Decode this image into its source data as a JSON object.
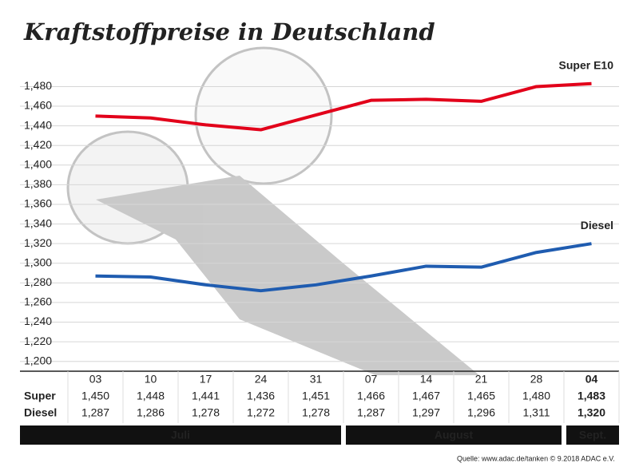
{
  "chart_data": {
    "type": "line",
    "title": "Kraftstoffpreise in Deutschland",
    "categories": [
      "03",
      "10",
      "17",
      "24",
      "31",
      "07",
      "14",
      "21",
      "28",
      "04"
    ],
    "series": [
      {
        "name": "Super E10",
        "row_label": "Super",
        "color": "#e2001a",
        "values": [
          1.45,
          1.448,
          1.441,
          1.436,
          1.451,
          1.466,
          1.467,
          1.465,
          1.48,
          1.483
        ],
        "value_labels": [
          "1,450",
          "1,448",
          "1,441",
          "1,436",
          "1,451",
          "1,466",
          "1,467",
          "1,465",
          "1,480",
          "1,483"
        ]
      },
      {
        "name": "Diesel",
        "row_label": "Diesel",
        "color": "#1f5cb0",
        "values": [
          1.287,
          1.286,
          1.278,
          1.272,
          1.278,
          1.287,
          1.297,
          1.296,
          1.311,
          1.32
        ],
        "value_labels": [
          "1,287",
          "1,286",
          "1,278",
          "1,272",
          "1,278",
          "1,287",
          "1,297",
          "1,296",
          "1,311",
          "1,320"
        ]
      }
    ],
    "months": [
      "Juli",
      "August",
      "Sept."
    ],
    "source": "Quelle: www.adac.de/tanken  © 9.2018  ADAC e.V.",
    "ylim": [
      1.19,
      1.495
    ],
    "yticks": [
      {
        "value": 1.2,
        "label": "1,200"
      },
      {
        "value": 1.22,
        "label": "1,220"
      },
      {
        "value": 1.24,
        "label": "1,240"
      },
      {
        "value": 1.26,
        "label": "1,260"
      },
      {
        "value": 1.28,
        "label": "1,280"
      },
      {
        "value": 1.3,
        "label": "1,300"
      },
      {
        "value": 1.32,
        "label": "1,320"
      },
      {
        "value": 1.34,
        "label": "1,340"
      },
      {
        "value": 1.36,
        "label": "1,360"
      },
      {
        "value": 1.38,
        "label": "1,380"
      },
      {
        "value": 1.4,
        "label": "1,400"
      },
      {
        "value": 1.42,
        "label": "1,420"
      },
      {
        "value": 1.44,
        "label": "1,440"
      },
      {
        "value": 1.46,
        "label": "1,460"
      },
      {
        "value": 1.48,
        "label": "1,480"
      }
    ],
    "grid": true
  }
}
